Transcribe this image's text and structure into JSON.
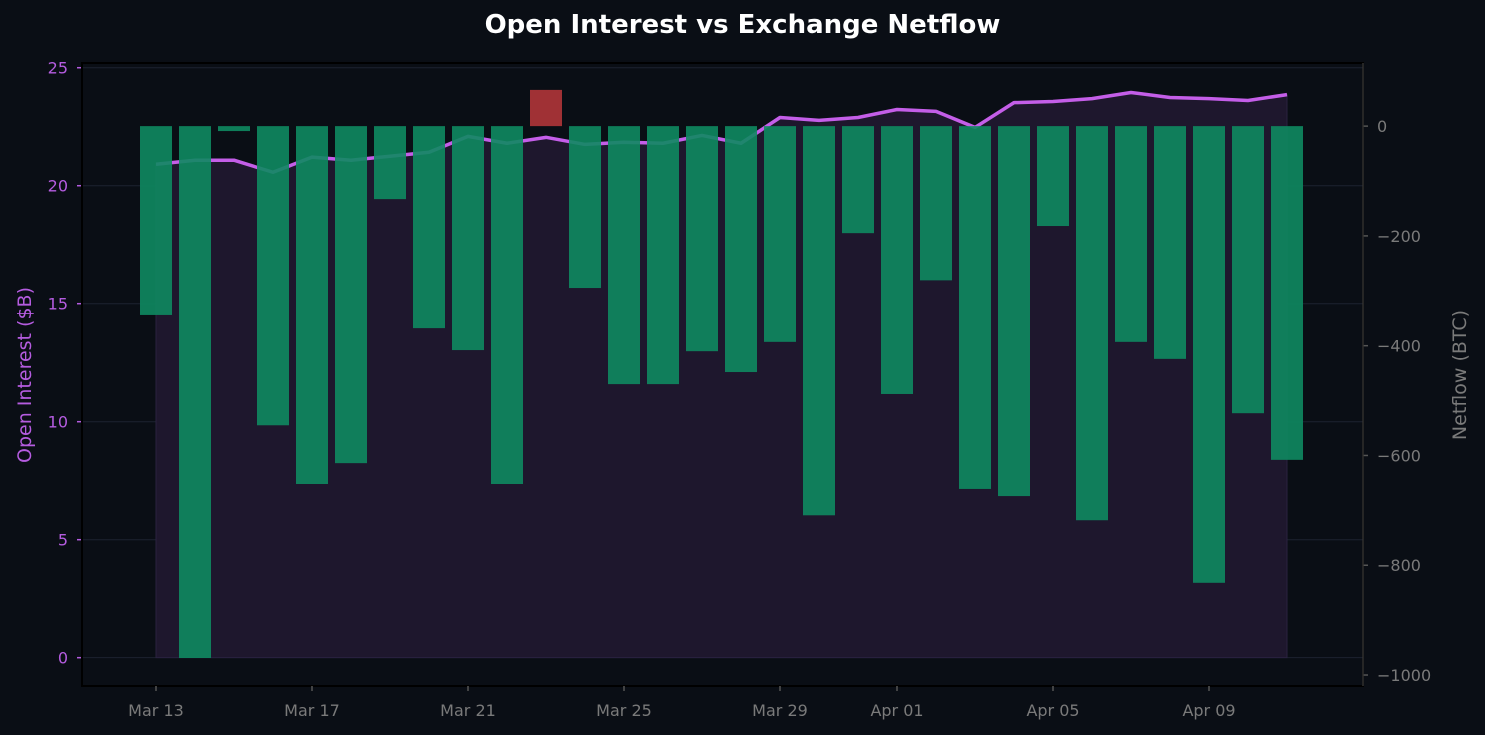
{
  "chart_data": {
    "type": "bar+line",
    "title": "Open Interest vs Exchange Netflow",
    "x": [
      "Mar 13",
      "Mar 14",
      "Mar 15",
      "Mar 16",
      "Mar 17",
      "Mar 18",
      "Mar 19",
      "Mar 20",
      "Mar 21",
      "Mar 22",
      "Mar 23",
      "Mar 24",
      "Mar 25",
      "Mar 26",
      "Mar 27",
      "Mar 28",
      "Mar 29",
      "Mar 30",
      "Mar 31",
      "Apr 01",
      "Apr 02",
      "Apr 03",
      "Apr 04",
      "Apr 05",
      "Apr 06",
      "Apr 07",
      "Apr 08",
      "Apr 09",
      "Apr 10",
      "Apr 11"
    ],
    "xtick_labels": [
      "Mar 13",
      "Mar 17",
      "Mar 21",
      "Mar 25",
      "Mar 29",
      "Apr 01",
      "Apr 05",
      "Apr 09"
    ],
    "xtick_index": [
      0,
      4,
      8,
      12,
      16,
      19,
      23,
      27
    ],
    "series": [
      {
        "axis": "left",
        "type": "line",
        "values": [
          20.91,
          21.08,
          21.08,
          20.57,
          21.21,
          21.08,
          21.25,
          21.42,
          22.09,
          21.8,
          22.05,
          21.75,
          21.84,
          21.8,
          22.13,
          21.8,
          22.89,
          22.77,
          22.89,
          23.23,
          23.15,
          22.47,
          23.52,
          23.57,
          23.69,
          23.95,
          23.74,
          23.69,
          23.61,
          23.86
        ]
      },
      {
        "axis": "right",
        "type": "bar",
        "values": [
          -344,
          -969,
          -9,
          -545,
          -652,
          -614,
          -133,
          -368,
          -408,
          -652,
          66,
          -295,
          -470,
          -470,
          -410,
          -448,
          -393,
          -709,
          -195,
          -488,
          -281,
          -661,
          -674,
          -182,
          -718,
          -393,
          -424,
          -832,
          -523,
          -608
        ]
      }
    ],
    "ylabel": "Open Interest ($B)",
    "ylabel_right": "Netflow (BTC)",
    "ylim": [
      -1.2,
      25.2
    ],
    "ylim_right": [
      -1020,
      115
    ],
    "yticks": [
      "0",
      "5",
      "10",
      "15",
      "20",
      "25"
    ],
    "yticks_right": [
      "0",
      "−200",
      "−400",
      "−600",
      "−800",
      "−1000"
    ],
    "grid": true,
    "colors": {
      "line": "#c45ee8",
      "inflow": "#b03538",
      "outflow": "#0e8a60",
      "area": "#1e172d",
      "background": "#0a0e15",
      "left_axis": "#b55ce0",
      "right_axis": "#7a7a7a"
    }
  }
}
